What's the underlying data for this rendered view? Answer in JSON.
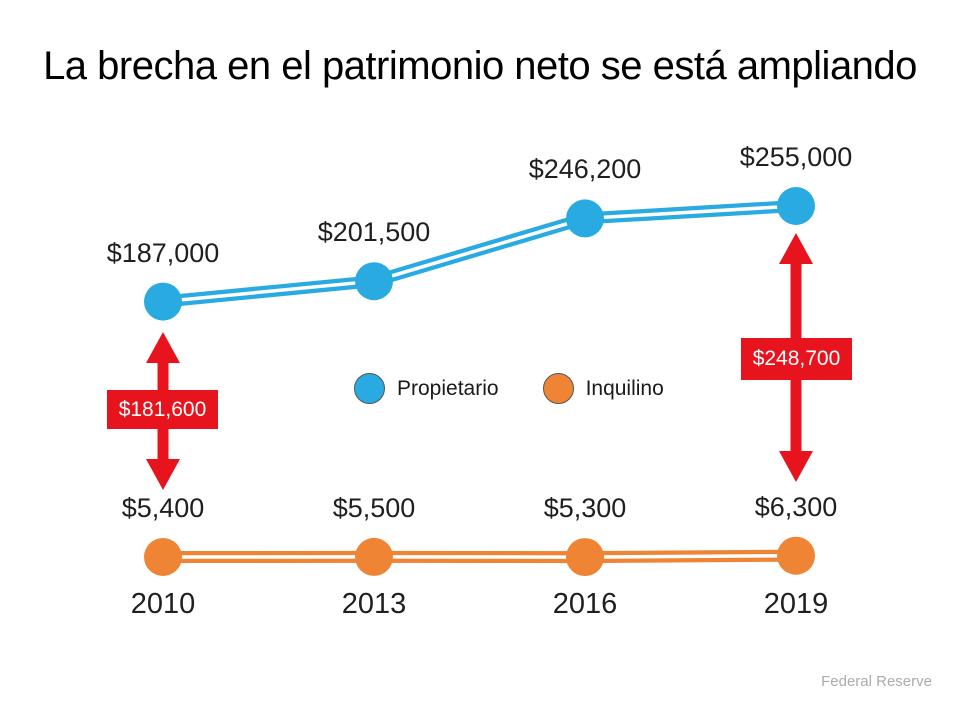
{
  "title": "La brecha en el patrimonio neto se está ampliando",
  "source": "Federal Reserve",
  "colors": {
    "owner_blue": "#29ABE2",
    "renter_orange": "#EE8434",
    "arrow_red": "#E8141D",
    "label_ink": "#1f1f1f",
    "source_gray": "#ABABAB"
  },
  "chart_data": {
    "type": "line",
    "title": "La brecha en el patrimonio neto se está ampliando",
    "categories": [
      "2010",
      "2013",
      "2016",
      "2019"
    ],
    "series": [
      {
        "name": "Propietario",
        "color": "#29ABE2",
        "values": [
          187000,
          201500,
          246200,
          255000
        ],
        "labels": [
          "$187,000",
          "$201,500",
          "$246,200",
          "$255,000"
        ]
      },
      {
        "name": "Inquilino",
        "color": "#EE8434",
        "values": [
          5400,
          5500,
          5300,
          6300
        ],
        "labels": [
          "$5,400",
          "$5,500",
          "$5,300",
          "$6,300"
        ]
      }
    ],
    "annotations": [
      {
        "type": "gap-arrow",
        "category": "2010",
        "label": "$181,600",
        "gap_value": 181600
      },
      {
        "type": "gap-arrow",
        "category": "2019",
        "label": "$248,700",
        "gap_value": 248700
      }
    ],
    "legend_position": "center-middle",
    "grid": false,
    "axes_hidden": true,
    "line_style": "double-line",
    "xlabel": "",
    "ylabel": ""
  }
}
